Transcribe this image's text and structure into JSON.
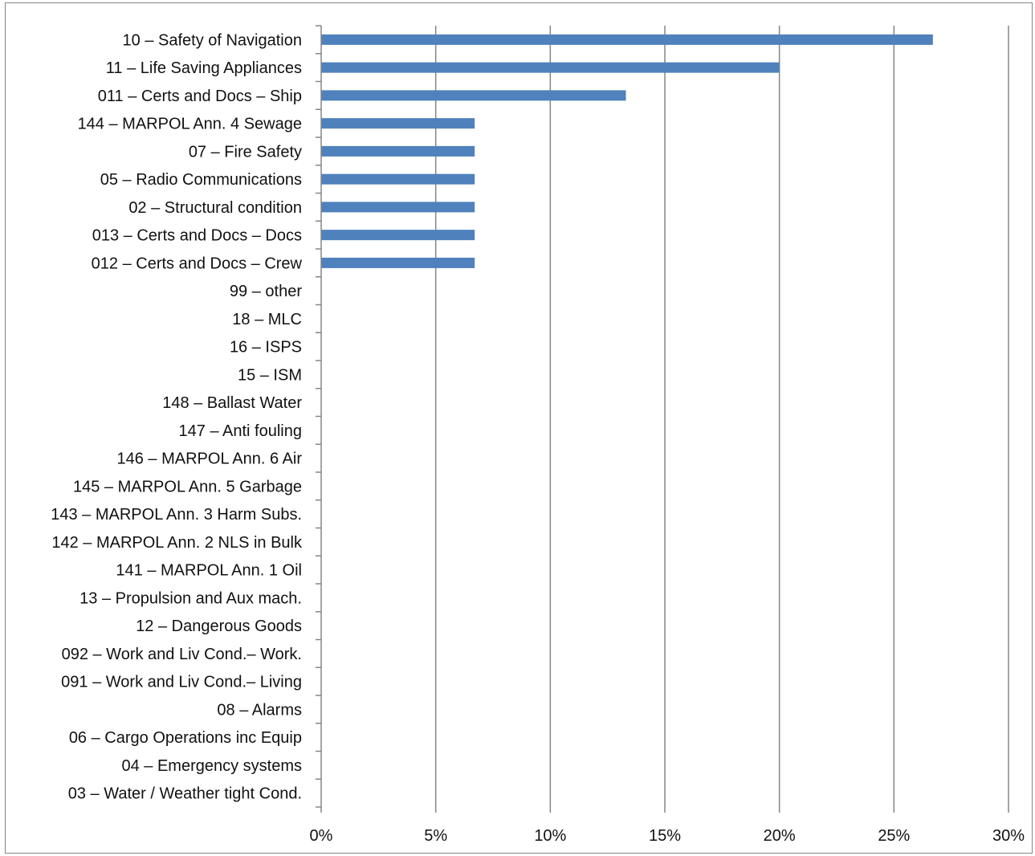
{
  "chart_data": {
    "type": "bar",
    "orientation": "horizontal",
    "title": "",
    "xlabel": "",
    "ylabel": "",
    "xlim": [
      0,
      30
    ],
    "x_ticks": [
      "0%",
      "5%",
      "10%",
      "15%",
      "20%",
      "25%",
      "30%"
    ],
    "grid": true,
    "legend": "none",
    "bar_color": "#4F81BD",
    "grid_color": "#868686",
    "categories": [
      "10 – Safety of Navigation",
      "11 – Life Saving Appliances",
      "011 – Certs and Docs – Ship",
      "144 – MARPOL Ann. 4 Sewage",
      "07 – Fire Safety",
      "05 – Radio Communications",
      "02 – Structural condition",
      "013 – Certs and Docs – Docs",
      "012 – Certs and Docs – Crew",
      "99 – other",
      "18 – MLC",
      "16 – ISPS",
      "15 – ISM",
      "148 – Ballast Water",
      "147 – Anti fouling",
      "146 – MARPOL Ann. 6 Air",
      "145 – MARPOL Ann. 5 Garbage",
      "143 – MARPOL Ann. 3 Harm Subs.",
      "142 – MARPOL Ann. 2 NLS in Bulk",
      "141 – MARPOL Ann. 1 Oil",
      "13 – Propulsion and Aux mach.",
      "12 – Dangerous Goods",
      "092 – Work and Liv Cond.– Work.",
      "091 – Work and Liv Cond.– Living",
      "08 – Alarms",
      "06 – Cargo Operations inc Equip",
      "04 – Emergency systems",
      "03 – Water / Weather tight Cond."
    ],
    "values": [
      26.7,
      20.0,
      13.3,
      6.7,
      6.7,
      6.7,
      6.7,
      6.7,
      6.7,
      0,
      0,
      0,
      0,
      0,
      0,
      0,
      0,
      0,
      0,
      0,
      0,
      0,
      0,
      0,
      0,
      0,
      0,
      0
    ]
  }
}
